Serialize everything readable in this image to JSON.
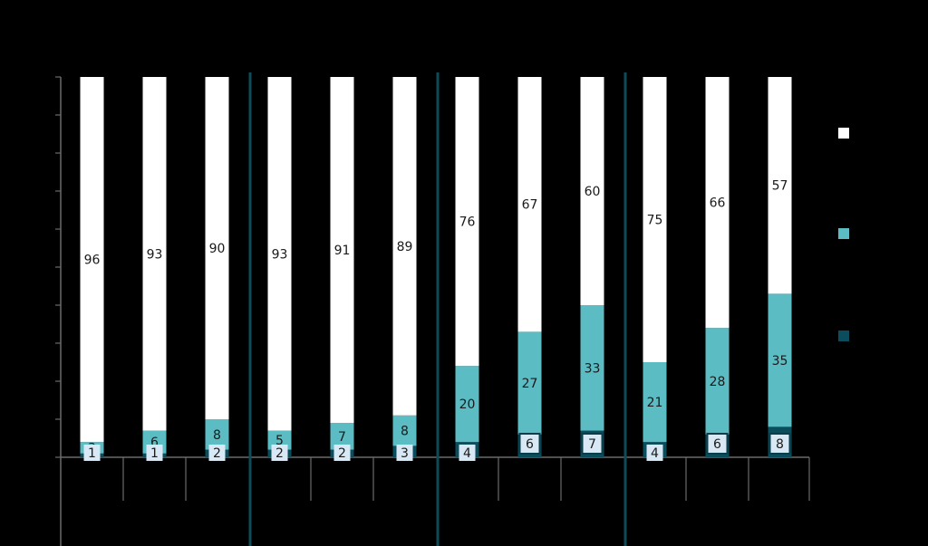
{
  "chart_data": {
    "type": "bar",
    "stacked": true,
    "ylim": [
      0,
      100
    ],
    "categories": [
      "",
      "",
      "",
      "",
      "",
      "",
      "",
      "",
      "",
      "",
      "",
      ""
    ],
    "series": [
      {
        "values": [
          1,
          1,
          2,
          2,
          2,
          3,
          4,
          6,
          7,
          4,
          6,
          8
        ]
      },
      {
        "values": [
          3,
          6,
          8,
          5,
          7,
          8,
          20,
          27,
          33,
          21,
          28,
          35
        ]
      },
      {
        "values": [
          96,
          93,
          90,
          93,
          91,
          89,
          76,
          67,
          60,
          75,
          66,
          57
        ]
      }
    ],
    "group_sizes": [
      3,
      3,
      3,
      3
    ],
    "grid": false,
    "legend": "right"
  },
  "colors": {
    "background": "#000000",
    "dark_teal": "#0a4d5c",
    "teal": "#5bbcc4",
    "white": "#ffffff",
    "label_box": "#d9e8f5",
    "divider": "#0e4a57",
    "axis": "#6b6b6b"
  }
}
